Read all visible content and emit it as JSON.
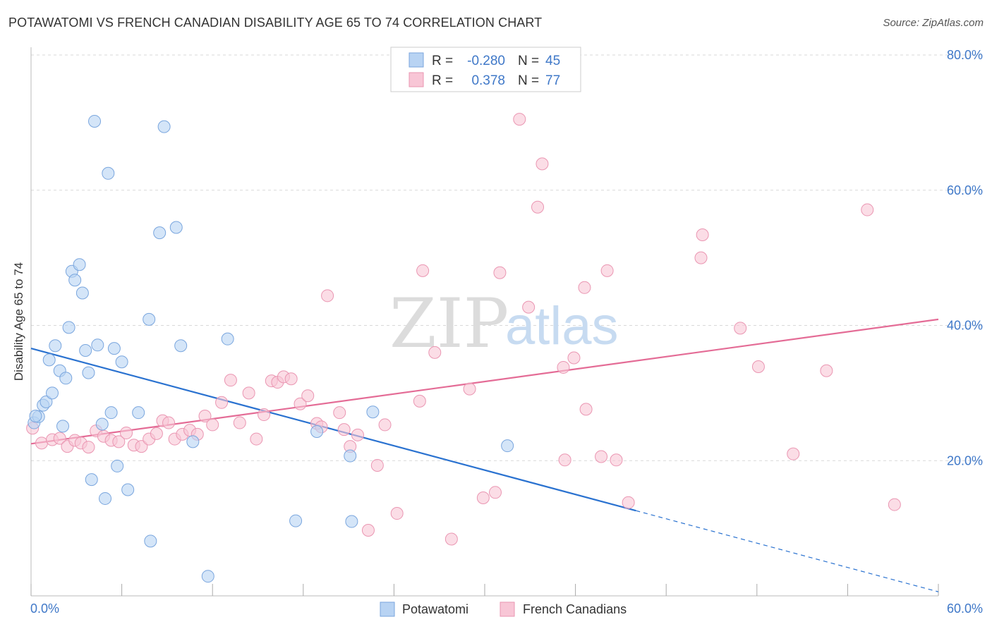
{
  "header": {
    "title": "POTAWATOMI VS FRENCH CANADIAN DISABILITY AGE 65 TO 74 CORRELATION CHART",
    "source": "Source: ZipAtlas.com"
  },
  "watermark": {
    "zip": "ZIP",
    "atlas": "atlas"
  },
  "legend": {
    "r_label": "R =",
    "n_label": "N =",
    "rows": [
      {
        "r": "-0.280",
        "n": "45"
      },
      {
        "r": "0.378",
        "n": "77"
      }
    ]
  },
  "bottom_legend": [
    "Potawatomi",
    "French Canadians"
  ],
  "colors": {
    "potawatomi_fill": "#b8d3f3",
    "potawatomi_stroke": "#7aa6de",
    "potawatomi_line": "#2a72d0",
    "french_fill": "#f8c6d6",
    "french_stroke": "#ea96b2",
    "french_line": "#e46c96",
    "value_text": "#3f78c8",
    "grid": "#d9d9d9"
  },
  "chart_data": {
    "type": "scatter",
    "title": "POTAWATOMI VS FRENCH CANADIAN DISABILITY AGE 65 TO 74 CORRELATION CHART",
    "xlabel": "",
    "ylabel": "Disability Age 65 to 74",
    "xlim": [
      0,
      60
    ],
    "ylim": [
      0,
      80
    ],
    "x_tick_labels": [
      "0.0%",
      "60.0%"
    ],
    "y_ticks": [
      20,
      40,
      60,
      80
    ],
    "y_tick_labels": [
      "20.0%",
      "40.0%",
      "60.0%",
      "80.0%"
    ],
    "grid": true,
    "legend_position": "top-center",
    "series": [
      {
        "name": "Potawatomi",
        "r": -0.28,
        "n": 45,
        "trend": {
          "x": [
            0,
            40
          ],
          "y": [
            36.6,
            12.6
          ],
          "extended_to": [
            60,
            0.6
          ]
        },
        "points": [
          [
            0.2,
            25.6
          ],
          [
            0.5,
            26.5
          ],
          [
            0.8,
            28.2
          ],
          [
            1.0,
            28.7
          ],
          [
            1.4,
            30.0
          ],
          [
            1.2,
            34.9
          ],
          [
            1.6,
            37.0
          ],
          [
            1.9,
            33.3
          ],
          [
            2.3,
            32.2
          ],
          [
            2.1,
            25.1
          ],
          [
            2.5,
            39.7
          ],
          [
            2.7,
            48.0
          ],
          [
            2.9,
            46.7
          ],
          [
            3.2,
            49.0
          ],
          [
            3.4,
            44.8
          ],
          [
            3.6,
            36.3
          ],
          [
            3.8,
            33.0
          ],
          [
            4.0,
            17.2
          ],
          [
            4.2,
            70.2
          ],
          [
            4.4,
            37.1
          ],
          [
            4.7,
            25.4
          ],
          [
            4.9,
            14.4
          ],
          [
            5.1,
            62.5
          ],
          [
            5.3,
            27.1
          ],
          [
            5.5,
            36.6
          ],
          [
            5.7,
            19.2
          ],
          [
            6.0,
            34.6
          ],
          [
            6.4,
            15.7
          ],
          [
            7.1,
            27.1
          ],
          [
            7.8,
            40.9
          ],
          [
            7.9,
            8.1
          ],
          [
            8.5,
            53.7
          ],
          [
            8.8,
            69.4
          ],
          [
            9.6,
            54.5
          ],
          [
            9.9,
            37.0
          ],
          [
            10.7,
            22.8
          ],
          [
            11.7,
            2.9
          ],
          [
            13.0,
            38.0
          ],
          [
            17.5,
            11.1
          ],
          [
            18.9,
            24.3
          ],
          [
            21.1,
            20.7
          ],
          [
            21.2,
            11.0
          ],
          [
            22.6,
            27.2
          ],
          [
            31.5,
            22.2
          ],
          [
            0.3,
            26.6
          ]
        ]
      },
      {
        "name": "French Canadians",
        "r": 0.378,
        "n": 77,
        "trend": {
          "x": [
            0,
            60
          ],
          "y": [
            22.5,
            40.9
          ]
        },
        "points": [
          [
            0.1,
            24.8
          ],
          [
            0.7,
            22.6
          ],
          [
            1.4,
            23.1
          ],
          [
            1.9,
            23.3
          ],
          [
            2.4,
            22.1
          ],
          [
            2.9,
            23.0
          ],
          [
            3.3,
            22.6
          ],
          [
            3.8,
            22.0
          ],
          [
            4.3,
            24.4
          ],
          [
            4.8,
            23.6
          ],
          [
            5.3,
            23.0
          ],
          [
            5.8,
            22.8
          ],
          [
            6.3,
            24.1
          ],
          [
            6.8,
            22.3
          ],
          [
            7.3,
            22.1
          ],
          [
            7.8,
            23.2
          ],
          [
            8.3,
            24.0
          ],
          [
            8.7,
            25.9
          ],
          [
            9.1,
            25.6
          ],
          [
            9.5,
            23.2
          ],
          [
            10.0,
            23.9
          ],
          [
            10.5,
            24.5
          ],
          [
            11.0,
            23.9
          ],
          [
            11.5,
            26.6
          ],
          [
            12.0,
            25.3
          ],
          [
            12.6,
            28.6
          ],
          [
            13.2,
            31.9
          ],
          [
            13.8,
            25.6
          ],
          [
            14.4,
            30.0
          ],
          [
            14.9,
            23.2
          ],
          [
            15.4,
            26.8
          ],
          [
            15.9,
            31.8
          ],
          [
            16.3,
            31.6
          ],
          [
            16.7,
            32.4
          ],
          [
            17.2,
            32.1
          ],
          [
            17.8,
            28.4
          ],
          [
            18.3,
            29.6
          ],
          [
            18.9,
            25.5
          ],
          [
            19.2,
            25.0
          ],
          [
            19.6,
            44.4
          ],
          [
            20.4,
            27.1
          ],
          [
            20.7,
            24.6
          ],
          [
            21.1,
            22.1
          ],
          [
            21.6,
            23.8
          ],
          [
            22.3,
            9.7
          ],
          [
            22.9,
            19.3
          ],
          [
            23.4,
            25.3
          ],
          [
            24.2,
            12.2
          ],
          [
            25.7,
            28.8
          ],
          [
            25.9,
            48.1
          ],
          [
            26.7,
            36.0
          ],
          [
            27.8,
            8.4
          ],
          [
            29.0,
            30.6
          ],
          [
            29.9,
            14.5
          ],
          [
            30.7,
            15.3
          ],
          [
            31.0,
            47.8
          ],
          [
            32.3,
            70.5
          ],
          [
            32.9,
            42.7
          ],
          [
            33.5,
            57.5
          ],
          [
            33.8,
            63.9
          ],
          [
            35.2,
            33.8
          ],
          [
            35.3,
            20.1
          ],
          [
            35.9,
            35.2
          ],
          [
            36.6,
            45.6
          ],
          [
            36.7,
            27.6
          ],
          [
            37.7,
            20.6
          ],
          [
            38.1,
            48.1
          ],
          [
            38.7,
            20.1
          ],
          [
            39.5,
            13.8
          ],
          [
            44.3,
            50.0
          ],
          [
            44.4,
            53.4
          ],
          [
            46.9,
            39.6
          ],
          [
            48.1,
            33.9
          ],
          [
            50.4,
            21.0
          ],
          [
            52.6,
            33.3
          ],
          [
            55.3,
            57.1
          ],
          [
            57.1,
            13.5
          ]
        ]
      }
    ]
  }
}
